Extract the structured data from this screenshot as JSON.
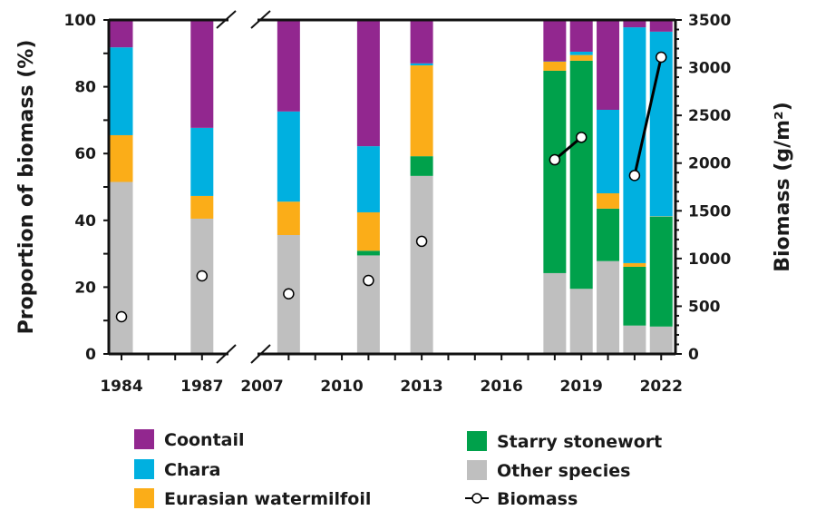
{
  "chart_data": {
    "type": "bar",
    "stacked": true,
    "x_axis_break": [
      "1987",
      "2007"
    ],
    "categories": [
      "1984",
      "1987",
      "2008",
      "2011",
      "2013",
      "2018",
      "2019",
      "2020",
      "2021",
      "2022"
    ],
    "x_tick_labels": [
      "1984",
      "1987",
      "2007",
      "2010",
      "2013",
      "2016",
      "2019",
      "2022"
    ],
    "ylabel": "Proportion of biomass (%)",
    "ylim": [
      0,
      100
    ],
    "y_ticks": [
      "0",
      "20",
      "40",
      "60",
      "80",
      "100"
    ],
    "y2label": "Biomass (g/m²)",
    "y2lim": [
      0,
      3500
    ],
    "y2_ticks": [
      "0",
      "500",
      "1000",
      "1500",
      "2000",
      "2500",
      "3000",
      "3500"
    ],
    "series": [
      {
        "name": "Other species",
        "color": "#bfbfbf",
        "values": [
          51.5,
          40.5,
          35.6,
          29.5,
          53.3,
          24.2,
          19.5,
          27.8,
          8.5,
          8.2
        ]
      },
      {
        "name": "Starry stonewort",
        "color": "#00a14b",
        "values": [
          0,
          0,
          0,
          1.4,
          5.9,
          60.6,
          68.3,
          15.7,
          17.6,
          32.9
        ]
      },
      {
        "name": "Eurasian watermilfoil",
        "color": "#fbad18",
        "values": [
          14.0,
          6.8,
          10.0,
          11.5,
          27.2,
          2.7,
          1.7,
          4.6,
          1.1,
          0.1
        ]
      },
      {
        "name": "Chara",
        "color": "#00b0e0",
        "values": [
          26.3,
          20.4,
          27.0,
          19.8,
          0.6,
          0.1,
          1.0,
          25.0,
          70.6,
          55.3
        ]
      },
      {
        "name": "Coontail",
        "color": "#92278f",
        "values": [
          8.2,
          32.3,
          27.4,
          37.8,
          13.0,
          12.4,
          9.5,
          26.9,
          2.2,
          3.5
        ]
      }
    ],
    "biomass_series": {
      "name": "Biomass",
      "years": [
        "1984",
        "1987",
        "2008",
        "2011",
        "2013",
        "2018",
        "2019",
        "2021",
        "2022"
      ],
      "values": [
        390,
        818,
        630,
        770,
        1180,
        2035,
        2270,
        1870,
        3110
      ],
      "connected_segments": [
        [
          "2018",
          "2019"
        ],
        [
          "2021",
          "2022"
        ]
      ]
    },
    "legend": {
      "placement": "bottom",
      "items": [
        "Coontail",
        "Chara",
        "Eurasian watermilfoil",
        "Starry stonewort",
        "Other species",
        "Biomass"
      ]
    }
  }
}
